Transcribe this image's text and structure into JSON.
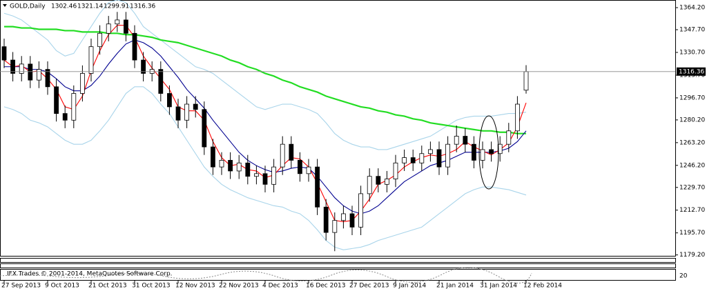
{
  "chart_data": {
    "type": "candlestick",
    "title": "GOLD,Daily",
    "watermark": "IFX Trades © 2001-2014, MetaQuotes Software Corp.",
    "subwindow_label": "20",
    "up_color": "#ffffff",
    "down_color": "#000000",
    "categories": [
      "27 Sep 2013",
      null,
      null,
      null,
      null,
      "9 Oct 2013",
      null,
      null,
      null,
      null,
      "21 Oct 2013",
      null,
      null,
      null,
      null,
      "31 Oct 2013",
      null,
      null,
      null,
      null,
      "12 Nov 2013",
      null,
      null,
      null,
      null,
      "22 Nov 2013",
      null,
      null,
      null,
      null,
      "4 Dec 2013",
      null,
      null,
      null,
      null,
      "16 Dec 2013",
      null,
      null,
      null,
      null,
      "27 Dec 2013",
      null,
      null,
      null,
      null,
      "9 Jan 2014",
      null,
      null,
      null,
      null,
      "21 Jan 2014",
      null,
      null,
      null,
      null,
      "31 Jan 2014",
      null,
      null,
      null,
      null,
      "12 Feb 2014"
    ],
    "open": [
      1335,
      1325,
      1315,
      1322,
      1310,
      1318,
      1305,
      1285,
      1280,
      1300,
      1315,
      1335,
      1345,
      1352,
      1355,
      1345,
      1325,
      1315,
      1318,
      1300,
      1290,
      1280,
      1292,
      1288,
      1260,
      1245,
      1250,
      1242,
      1248,
      1238,
      1240,
      1232,
      1245,
      1262,
      1250,
      1240,
      1245,
      1215,
      1196,
      1205,
      1210,
      1200,
      1225,
      1238,
      1232,
      1236,
      1248,
      1252,
      1248,
      1255,
      1258,
      1245,
      1262,
      1268,
      1262,
      1250,
      1258,
      1255,
      1262,
      1272,
      1302.46
    ],
    "high": [
      1341,
      1331,
      1328,
      1328,
      1324,
      1324,
      1311,
      1291,
      1306,
      1321,
      1341,
      1351,
      1358,
      1361,
      1361,
      1351,
      1331,
      1324,
      1324,
      1306,
      1296,
      1298,
      1298,
      1294,
      1266,
      1256,
      1256,
      1254,
      1254,
      1246,
      1246,
      1251,
      1268,
      1268,
      1256,
      1251,
      1251,
      1221,
      1211,
      1216,
      1216,
      1231,
      1244,
      1244,
      1242,
      1254,
      1258,
      1258,
      1261,
      1264,
      1264,
      1268,
      1276,
      1274,
      1268,
      1264,
      1264,
      1268,
      1278,
      1298,
      1321.14
    ],
    "low": [
      1319,
      1309,
      1309,
      1304,
      1304,
      1299,
      1279,
      1274,
      1274,
      1294,
      1309,
      1329,
      1339,
      1346,
      1339,
      1319,
      1309,
      1309,
      1294,
      1284,
      1274,
      1274,
      1282,
      1254,
      1239,
      1239,
      1236,
      1236,
      1232,
      1232,
      1226,
      1226,
      1239,
      1244,
      1234,
      1234,
      1209,
      1190,
      1182,
      1199,
      1194,
      1194,
      1219,
      1226,
      1226,
      1230,
      1242,
      1242,
      1242,
      1249,
      1239,
      1239,
      1256,
      1256,
      1244,
      1244,
      1249,
      1249,
      1256,
      1266,
      1299.91
    ],
    "close": [
      1325,
      1315,
      1322,
      1310,
      1318,
      1305,
      1285,
      1280,
      1300,
      1315,
      1335,
      1345,
      1352,
      1355,
      1345,
      1325,
      1315,
      1318,
      1300,
      1290,
      1280,
      1292,
      1288,
      1260,
      1245,
      1250,
      1242,
      1248,
      1238,
      1240,
      1232,
      1245,
      1262,
      1250,
      1240,
      1245,
      1215,
      1196,
      1205,
      1210,
      1200,
      1225,
      1238,
      1232,
      1236,
      1248,
      1252,
      1248,
      1255,
      1258,
      1245,
      1262,
      1268,
      1262,
      1250,
      1258,
      1255,
      1262,
      1272,
      1292,
      1316.36
    ],
    "lines": [
      {
        "color": "#a8d4ea",
        "values": [
          1360,
          1358,
          1355,
          1350,
          1345,
          1340,
          1332,
          1328,
          1330,
          1340,
          1350,
          1360,
          1368,
          1370,
          1368,
          1360,
          1350,
          1345,
          1340,
          1335,
          1330,
          1325,
          1320,
          1318,
          1315,
          1310,
          1305,
          1300,
          1295,
          1290,
          1288,
          1290,
          1292,
          1292,
          1290,
          1288,
          1285,
          1278,
          1270,
          1265,
          1262,
          1260,
          1260,
          1258,
          1258,
          1260,
          1262,
          1264,
          1266,
          1268,
          1272,
          1276,
          1280,
          1282,
          1283,
          1283,
          1283,
          1284,
          1285,
          1285,
          1286
        ]
      },
      {
        "color": "#a8d4ea",
        "values": [
          1290,
          1288,
          1285,
          1280,
          1278,
          1275,
          1270,
          1265,
          1262,
          1262,
          1265,
          1272,
          1280,
          1290,
          1300,
          1305,
          1305,
          1300,
          1292,
          1285,
          1275,
          1265,
          1255,
          1245,
          1238,
          1232,
          1228,
          1225,
          1222,
          1220,
          1218,
          1216,
          1215,
          1212,
          1210,
          1205,
          1198,
          1190,
          1185,
          1183,
          1184,
          1185,
          1187,
          1190,
          1192,
          1194,
          1196,
          1198,
          1200,
          1205,
          1210,
          1215,
          1220,
          1225,
          1228,
          1230,
          1230,
          1229,
          1228,
          1226,
          1224
        ]
      },
      {
        "color": "#22dd22",
        "values": [
          1350,
          1350,
          1349,
          1349,
          1348,
          1348,
          1348,
          1347,
          1347,
          1346,
          1346,
          1346,
          1345,
          1345,
          1344,
          1344,
          1343,
          1342,
          1340,
          1339,
          1338,
          1336,
          1334,
          1332,
          1330,
          1328,
          1325,
          1323,
          1320,
          1318,
          1315,
          1313,
          1310,
          1308,
          1305,
          1303,
          1301,
          1298,
          1296,
          1294,
          1292,
          1290,
          1289,
          1287,
          1286,
          1284,
          1283,
          1281,
          1280,
          1278,
          1277,
          1276,
          1275,
          1274,
          1273,
          1272,
          1272,
          1271,
          1271,
          1270,
          1270
        ]
      },
      {
        "color": "#000090",
        "values": [
          1320,
          1320,
          1320,
          1318,
          1318,
          1316,
          1311,
          1305,
          1302,
          1302,
          1306,
          1313,
          1322,
          1330,
          1337,
          1340,
          1338,
          1334,
          1328,
          1320,
          1312,
          1303,
          1296,
          1289,
          1280,
          1272,
          1264,
          1256,
          1250,
          1246,
          1243,
          1241,
          1242,
          1244,
          1245,
          1244,
          1238,
          1230,
          1222,
          1216,
          1212,
          1210,
          1212,
          1216,
          1222,
          1228,
          1234,
          1238,
          1242,
          1246,
          1248,
          1250,
          1253,
          1256,
          1256,
          1256,
          1256,
          1257,
          1259,
          1264,
          1272
        ]
      },
      {
        "color": "#ff0000",
        "values": [
          1325,
          1320,
          1321,
          1316,
          1317,
          1311,
          1303,
          1290,
          1288,
          1298,
          1317,
          1332,
          1344,
          1351,
          1351,
          1342,
          1328,
          1319,
          1311,
          1303,
          1290,
          1287,
          1287,
          1280,
          1264,
          1252,
          1246,
          1247,
          1243,
          1242,
          1237,
          1239,
          1246,
          1252,
          1251,
          1245,
          1233,
          1219,
          1205,
          1204,
          1205,
          1212,
          1221,
          1232,
          1235,
          1239,
          1245,
          1249,
          1252,
          1254,
          1253,
          1255,
          1258,
          1264,
          1260,
          1257,
          1254,
          1258,
          1263,
          1275,
          1293
        ]
      }
    ],
    "ylim": [
      1178,
      1369.4
    ],
    "yticks": [
      {
        "value": 1364.2,
        "label": "1364.20"
      },
      {
        "value": 1347.7,
        "label": "1347.70"
      },
      {
        "value": 1330.7,
        "label": "1330.70"
      },
      {
        "value": 1313.7,
        "label": "1313.70"
      },
      {
        "value": 1296.7,
        "label": "1296.70"
      },
      {
        "value": 1280.2,
        "label": "1280.20"
      },
      {
        "value": 1263.2,
        "label": "1263.20"
      },
      {
        "value": 1246.2,
        "label": "1246.20"
      },
      {
        "value": 1229.7,
        "label": "1229.70"
      },
      {
        "value": 1212.7,
        "label": "1212.70"
      },
      {
        "value": 1195.7,
        "label": "1195.70"
      },
      {
        "value": 1179.2,
        "label": "1179.20"
      }
    ]
  }
}
